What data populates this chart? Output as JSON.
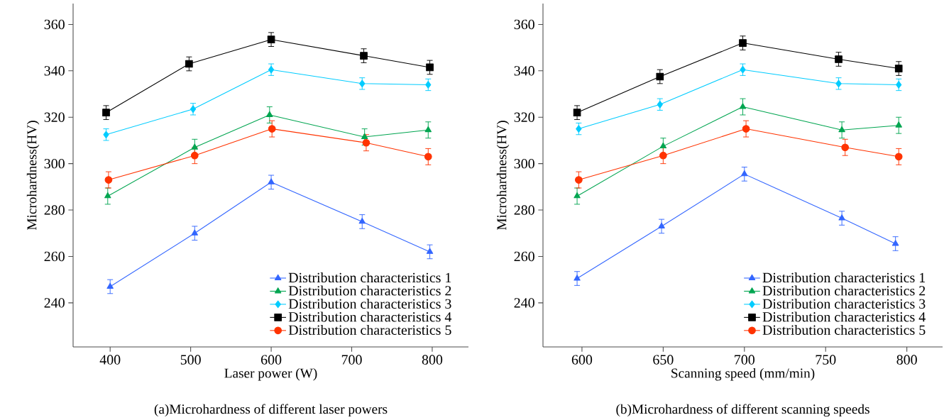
{
  "chart_data": [
    {
      "type": "line",
      "title": "(a)Microhardness of different laser powers",
      "xlabel": "Laser power (W)",
      "ylabel": "Microhardness(HV)",
      "xlim": [
        354,
        845
      ],
      "xticks": [
        400,
        500,
        600,
        700,
        800
      ],
      "ylim": [
        221,
        369
      ],
      "yticks": [
        240,
        260,
        280,
        300,
        320,
        340,
        360
      ],
      "legend": "bottom right",
      "series": [
        {
          "name": "Distribution characteristics 1",
          "color": "#3366ff",
          "marker": "triangle",
          "x": [
            400,
            505,
            600,
            713,
            797
          ],
          "values": [
            247,
            270,
            292,
            275,
            262
          ],
          "errors": [
            3,
            3,
            3,
            3,
            3
          ]
        },
        {
          "name": "Distribution characteristics 2",
          "color": "#00a550",
          "marker": "triangle",
          "x": [
            397,
            505,
            598,
            716,
            795
          ],
          "values": [
            286,
            307,
            321,
            311.5,
            314.5
          ],
          "errors": [
            3.5,
            3.5,
            3.5,
            3.5,
            3.5
          ]
        },
        {
          "name": "Distribution characteristics 3",
          "color": "#00ccff",
          "marker": "diamond",
          "x": [
            395,
            503,
            600,
            713,
            795
          ],
          "values": [
            312.5,
            323.5,
            340.5,
            334.5,
            334
          ],
          "errors": [
            2.5,
            2.5,
            2.5,
            2.5,
            2.5
          ]
        },
        {
          "name": "Distribution characteristics 4",
          "color": "#000000",
          "marker": "square",
          "x": [
            395,
            498,
            600,
            715,
            797
          ],
          "values": [
            322,
            343,
            353.5,
            346.5,
            341.5
          ],
          "errors": [
            3,
            3,
            3,
            3,
            3
          ]
        },
        {
          "name": "Distribution characteristics 5",
          "color": "#ff3300",
          "marker": "circle",
          "x": [
            398,
            505,
            601,
            718,
            795
          ],
          "values": [
            293,
            303.5,
            315,
            309,
            303
          ],
          "errors": [
            3.5,
            3.5,
            3.5,
            3.5,
            3.5
          ]
        }
      ]
    },
    {
      "type": "line",
      "title": "(b)Microhardness of different scanning speeds",
      "xlabel": "Scanning speed (mm/min)",
      "ylabel": "Microhardness(HV)",
      "xlim": [
        576,
        822
      ],
      "xticks": [
        600,
        650,
        700,
        750,
        800
      ],
      "ylim": [
        221,
        369
      ],
      "yticks": [
        240,
        260,
        280,
        300,
        320,
        340,
        360
      ],
      "legend": "bottom right",
      "series": [
        {
          "name": "Distribution characteristics 1",
          "color": "#3366ff",
          "marker": "triangle",
          "x": [
            597,
            649,
            700,
            760,
            793
          ],
          "values": [
            250.5,
            273,
            295.5,
            276.5,
            265.5
          ],
          "errors": [
            3,
            3,
            3,
            3,
            3
          ]
        },
        {
          "name": "Distribution characteristics 2",
          "color": "#00a550",
          "marker": "triangle",
          "x": [
            597,
            650,
            699,
            760,
            795
          ],
          "values": [
            286,
            307.5,
            324.5,
            314.5,
            316.5
          ],
          "errors": [
            3.5,
            3.5,
            3.5,
            3.5,
            3.5
          ]
        },
        {
          "name": "Distribution characteristics 3",
          "color": "#00ccff",
          "marker": "diamond",
          "x": [
            598,
            648,
            699,
            758,
            795
          ],
          "values": [
            315,
            325.5,
            340.5,
            334.5,
            334
          ],
          "errors": [
            2.5,
            2.5,
            2.5,
            2.5,
            2.5
          ]
        },
        {
          "name": "Distribution characteristics 4",
          "color": "#000000",
          "marker": "square",
          "x": [
            597,
            648,
            699,
            758,
            795
          ],
          "values": [
            322,
            337.5,
            352,
            345,
            341
          ],
          "errors": [
            3,
            3,
            3,
            3,
            3
          ]
        },
        {
          "name": "Distribution characteristics 5",
          "color": "#ff3300",
          "marker": "circle",
          "x": [
            598,
            650,
            701,
            762,
            795
          ],
          "values": [
            293,
            303.5,
            315,
            307,
            303
          ],
          "errors": [
            3.5,
            3.5,
            3.5,
            3.5,
            3.5
          ]
        }
      ]
    }
  ]
}
